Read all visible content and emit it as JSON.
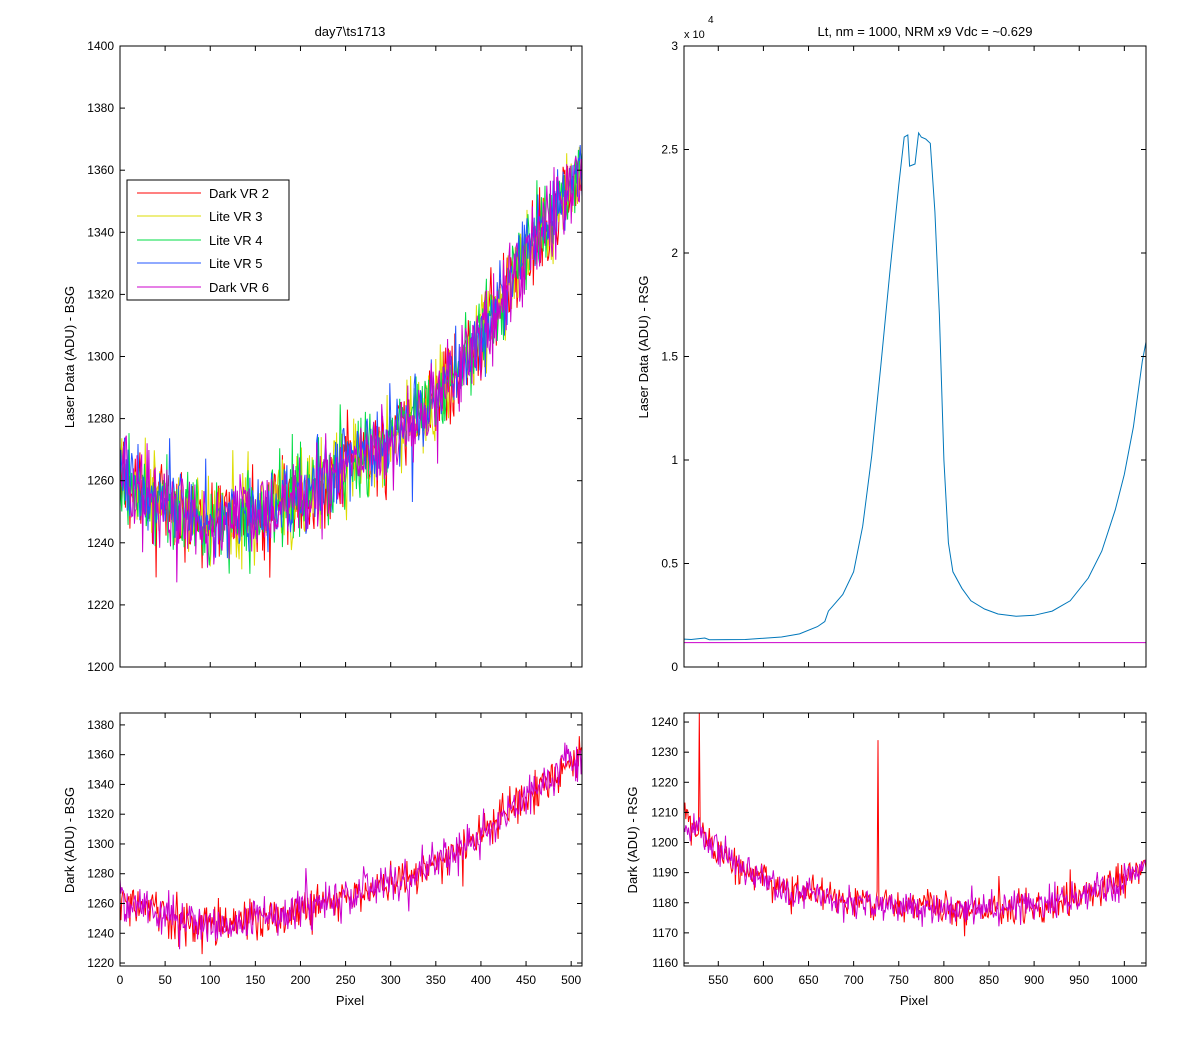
{
  "figure": {
    "background": "#ffffff",
    "series_colors": {
      "dark_vr2": "#ff0000",
      "lite_vr3": "#dddd00",
      "lite_vr4": "#00dd44",
      "lite_vr5": "#2255ff",
      "dark_vr6": "#cc00cc",
      "rsg_laser": "#0077bb"
    }
  },
  "chart_data": [
    {
      "id": "bsg_laser",
      "type": "line",
      "title": "day7\\ts1713",
      "xlabel": "",
      "ylabel": "Laser Data (ADU) - BSG",
      "xlim": [
        0,
        512
      ],
      "ylim": [
        1200,
        1400
      ],
      "xticks": [
        0,
        50,
        100,
        150,
        200,
        250,
        300,
        350,
        400,
        450,
        500
      ],
      "yticks": [
        1200,
        1220,
        1240,
        1260,
        1280,
        1300,
        1320,
        1340,
        1360,
        1380,
        1400
      ],
      "show_xtick_labels": false,
      "legend": {
        "placement": "upper-left",
        "entries": [
          "Dark VR 2",
          "Lite VR 3",
          "Lite VR 4",
          "Lite VR 5",
          "Dark VR 6"
        ]
      },
      "series": [
        {
          "name": "Dark VR 2",
          "color": "#ff0000",
          "x_range": [
            0,
            512
          ],
          "trend_points": [
            [
              0,
              1262
            ],
            [
              50,
              1252
            ],
            [
              100,
              1246
            ],
            [
              150,
              1249
            ],
            [
              200,
              1255
            ],
            [
              250,
              1264
            ],
            [
              300,
              1273
            ],
            [
              350,
              1286
            ],
            [
              400,
              1307
            ],
            [
              450,
              1333
            ],
            [
              510,
              1358
            ]
          ],
          "noise": 10
        },
        {
          "name": "Lite VR 3",
          "color": "#dddd00",
          "x_range": [
            0,
            512
          ],
          "trend_points": [
            [
              0,
              1262
            ],
            [
              50,
              1252
            ],
            [
              100,
              1246
            ],
            [
              150,
              1249
            ],
            [
              200,
              1255
            ],
            [
              250,
              1264
            ],
            [
              300,
              1273
            ],
            [
              350,
              1286
            ],
            [
              400,
              1307
            ],
            [
              450,
              1333
            ],
            [
              510,
              1358
            ]
          ],
          "noise": 10
        },
        {
          "name": "Lite VR 4",
          "color": "#00dd44",
          "x_range": [
            0,
            512
          ],
          "trend_points": [
            [
              0,
              1262
            ],
            [
              50,
              1252
            ],
            [
              100,
              1246
            ],
            [
              150,
              1249
            ],
            [
              200,
              1255
            ],
            [
              250,
              1264
            ],
            [
              300,
              1273
            ],
            [
              350,
              1286
            ],
            [
              400,
              1307
            ],
            [
              450,
              1333
            ],
            [
              510,
              1358
            ]
          ],
          "noise": 10
        },
        {
          "name": "Lite VR 5",
          "color": "#2255ff",
          "x_range": [
            0,
            512
          ],
          "trend_points": [
            [
              0,
              1262
            ],
            [
              50,
              1252
            ],
            [
              100,
              1246
            ],
            [
              150,
              1249
            ],
            [
              200,
              1255
            ],
            [
              250,
              1264
            ],
            [
              300,
              1273
            ],
            [
              350,
              1286
            ],
            [
              400,
              1307
            ],
            [
              450,
              1333
            ],
            [
              510,
              1358
            ]
          ],
          "noise": 9
        },
        {
          "name": "Dark VR 6",
          "color": "#cc00cc",
          "x_range": [
            0,
            512
          ],
          "trend_points": [
            [
              0,
              1262
            ],
            [
              50,
              1252
            ],
            [
              100,
              1246
            ],
            [
              150,
              1249
            ],
            [
              200,
              1255
            ],
            [
              250,
              1264
            ],
            [
              300,
              1273
            ],
            [
              350,
              1286
            ],
            [
              400,
              1307
            ],
            [
              450,
              1333
            ],
            [
              510,
              1358
            ]
          ],
          "noise": 10
        }
      ]
    },
    {
      "id": "rsg_laser",
      "type": "line",
      "title": "Lt, nm = 1000, NRM x9 Vdc = ~0.629",
      "xlabel": "",
      "ylabel": "Laser Data (ADU) - RSG",
      "xlim": [
        512,
        1024
      ],
      "ylim": [
        0,
        30000
      ],
      "exponent_label": "x 10",
      "exponent_power": "4",
      "xticks": [
        550,
        600,
        650,
        700,
        750,
        800,
        850,
        900,
        950,
        1000
      ],
      "yticks": [
        0,
        5000,
        10000,
        15000,
        20000,
        25000,
        30000
      ],
      "ytick_labels": [
        "0",
        "0.5",
        "1",
        "1.5",
        "2",
        "2.5",
        "3"
      ],
      "show_xtick_labels": false,
      "series": [
        {
          "name": "",
          "color": "#0077bb",
          "points": [
            [
              512,
              1350
            ],
            [
              520,
              1330
            ],
            [
              535,
              1400
            ],
            [
              540,
              1320
            ],
            [
              580,
              1330
            ],
            [
              620,
              1450
            ],
            [
              640,
              1600
            ],
            [
              660,
              1950
            ],
            [
              668,
              2200
            ],
            [
              672,
              2700
            ],
            [
              680,
              3100
            ],
            [
              688,
              3500
            ],
            [
              700,
              4600
            ],
            [
              710,
              6800
            ],
            [
              720,
              10200
            ],
            [
              730,
              14500
            ],
            [
              740,
              19000
            ],
            [
              750,
              23300
            ],
            [
              756,
              25600
            ],
            [
              760,
              25700
            ],
            [
              762,
              24200
            ],
            [
              768,
              24300
            ],
            [
              772,
              25800
            ],
            [
              775,
              25600
            ],
            [
              780,
              25500
            ],
            [
              785,
              25300
            ],
            [
              790,
              22000
            ],
            [
              795,
              17000
            ],
            [
              800,
              10000
            ],
            [
              805,
              6000
            ],
            [
              810,
              4600
            ],
            [
              820,
              3800
            ],
            [
              830,
              3200
            ],
            [
              845,
              2800
            ],
            [
              860,
              2560
            ],
            [
              880,
              2450
            ],
            [
              900,
              2500
            ],
            [
              920,
              2700
            ],
            [
              940,
              3200
            ],
            [
              960,
              4300
            ],
            [
              975,
              5600
            ],
            [
              990,
              7600
            ],
            [
              1000,
              9300
            ],
            [
              1010,
              11600
            ],
            [
              1020,
              14800
            ],
            [
              1024,
              15700
            ]
          ]
        },
        {
          "name": "",
          "color": "#cc00cc",
          "points": [
            [
              512,
              1180
            ],
            [
              1024,
              1180
            ]
          ]
        }
      ]
    },
    {
      "id": "bsg_dark",
      "type": "line",
      "title": "",
      "xlabel": "Pixel",
      "ylabel": "Dark (ADU) - BSG",
      "xlim": [
        0,
        512
      ],
      "ylim": [
        1218,
        1388
      ],
      "xticks": [
        0,
        50,
        100,
        150,
        200,
        250,
        300,
        350,
        400,
        450,
        500
      ],
      "yticks": [
        1220,
        1240,
        1260,
        1280,
        1300,
        1320,
        1340,
        1360,
        1380
      ],
      "show_xtick_labels": true,
      "series": [
        {
          "name": "Dark VR 2",
          "color": "#ff0000",
          "x_range": [
            0,
            512
          ],
          "trend_points": [
            [
              0,
              1262
            ],
            [
              50,
              1252
            ],
            [
              100,
              1246
            ],
            [
              150,
              1249
            ],
            [
              200,
              1255
            ],
            [
              250,
              1264
            ],
            [
              300,
              1273
            ],
            [
              350,
              1286
            ],
            [
              400,
              1307
            ],
            [
              450,
              1333
            ],
            [
              510,
              1358
            ]
          ],
          "noise": 10
        },
        {
          "name": "Dark VR 6",
          "color": "#cc00cc",
          "x_range": [
            0,
            512
          ],
          "trend_points": [
            [
              0,
              1262
            ],
            [
              50,
              1252
            ],
            [
              100,
              1246
            ],
            [
              150,
              1249
            ],
            [
              200,
              1255
            ],
            [
              250,
              1264
            ],
            [
              300,
              1273
            ],
            [
              350,
              1286
            ],
            [
              400,
              1307
            ],
            [
              450,
              1333
            ],
            [
              510,
              1358
            ]
          ],
          "noise": 10
        }
      ]
    },
    {
      "id": "rsg_dark",
      "type": "line",
      "title": "",
      "xlabel": "Pixel",
      "ylabel": "Dark (ADU) - RSG",
      "xlim": [
        512,
        1024
      ],
      "ylim": [
        1159,
        1243
      ],
      "xticks": [
        550,
        600,
        650,
        700,
        750,
        800,
        850,
        900,
        950,
        1000
      ],
      "yticks": [
        1160,
        1170,
        1180,
        1190,
        1200,
        1210,
        1220,
        1230,
        1240
      ],
      "show_xtick_labels": true,
      "spikes": [
        [
          529,
          1243
        ],
        [
          727,
          1234
        ]
      ],
      "series": [
        {
          "name": "Dark VR 2",
          "color": "#ff0000",
          "x_range": [
            512,
            1024
          ],
          "trend_points": [
            [
              512,
              1208
            ],
            [
              530,
              1203
            ],
            [
              550,
              1197
            ],
            [
              580,
              1190
            ],
            [
              620,
              1185
            ],
            [
              680,
              1181
            ],
            [
              750,
              1179
            ],
            [
              800,
              1178
            ],
            [
              850,
              1178
            ],
            [
              900,
              1179
            ],
            [
              950,
              1182
            ],
            [
              1000,
              1187
            ],
            [
              1024,
              1193
            ]
          ],
          "noise": 4
        },
        {
          "name": "Dark VR 6",
          "color": "#cc00cc",
          "x_range": [
            512,
            1024
          ],
          "trend_points": [
            [
              512,
              1208
            ],
            [
              530,
              1203
            ],
            [
              550,
              1197
            ],
            [
              580,
              1190
            ],
            [
              620,
              1185
            ],
            [
              680,
              1181
            ],
            [
              750,
              1179
            ],
            [
              800,
              1178
            ],
            [
              850,
              1178
            ],
            [
              900,
              1179
            ],
            [
              950,
              1182
            ],
            [
              1000,
              1187
            ],
            [
              1024,
              1193
            ]
          ],
          "noise": 4
        }
      ]
    }
  ]
}
